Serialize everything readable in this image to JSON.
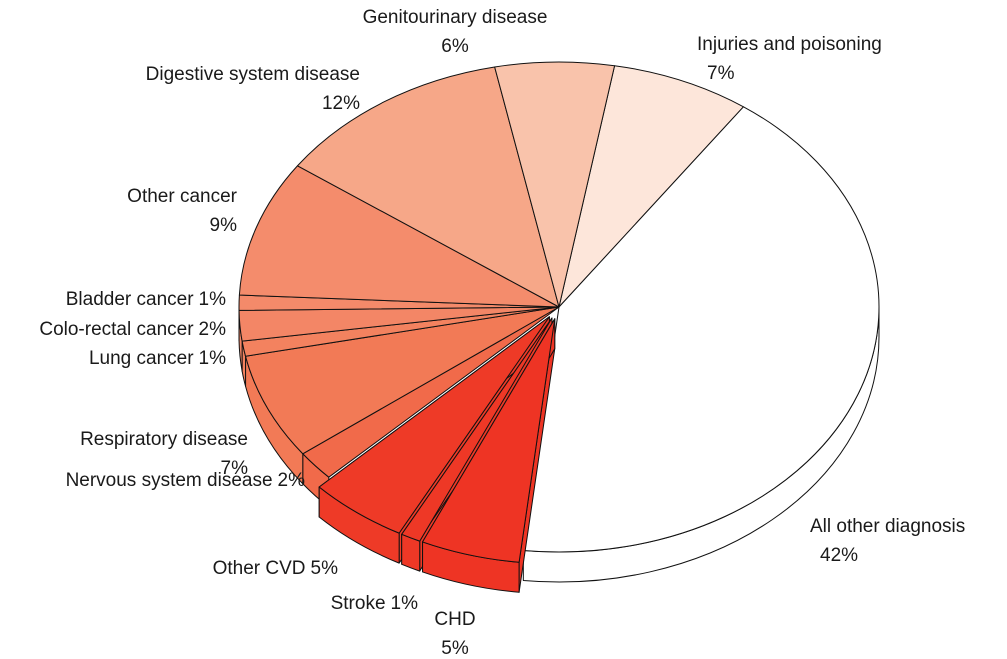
{
  "chart_data": {
    "type": "pie",
    "categories": [
      "Injuries and poisoning",
      "All other diagnosis",
      "CHD",
      "Stroke",
      "Other CVD",
      "Nervous system disease",
      "Respiratory disease",
      "Lung cancer",
      "Colo-rectal cancer",
      "Bladder cancer",
      "Other cancer",
      "Digestive system disease",
      "Genitourinary disease"
    ],
    "values": [
      7,
      42,
      5,
      1,
      5,
      2,
      7,
      1,
      2,
      1,
      9,
      12,
      6
    ],
    "value_labels": [
      "7%",
      "42%",
      "5%",
      "1%",
      "5%",
      "2%",
      "7%",
      "1%",
      "2%",
      "1%",
      "9%",
      "12%",
      "6%"
    ],
    "colors": [
      "#fde6da",
      "#ffffff",
      "#ee3424",
      "#ee3826",
      "#ee3a27",
      "#f16a4a",
      "#f27a56",
      "#f3825f",
      "#f38666",
      "#f48a6a",
      "#f48c6c",
      "#f6a788",
      "#f9c3ab"
    ]
  }
}
